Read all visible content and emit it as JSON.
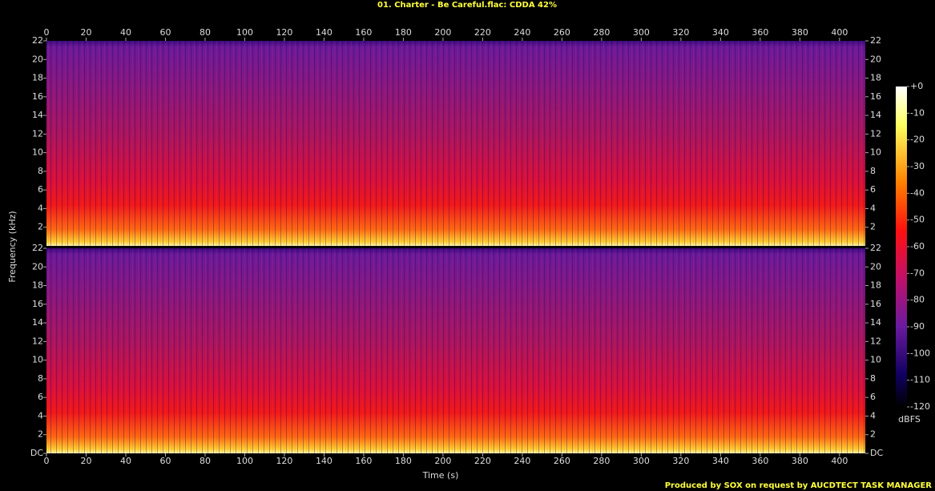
{
  "chart_data": {
    "type": "spectrogram",
    "title": "01. Charter - Be Careful.flac: CDDA 42%",
    "x_label": "Time (s)",
    "y_label": "Frequency (kHz)",
    "xlim": [
      0,
      413
    ],
    "xticks": [
      0,
      20,
      40,
      60,
      80,
      100,
      120,
      140,
      160,
      180,
      200,
      220,
      240,
      260,
      280,
      300,
      320,
      340,
      360,
      380,
      400
    ],
    "ylim": [
      0,
      22
    ],
    "yticks": [
      {
        "value": 0,
        "label": "DC"
      },
      2,
      4,
      6,
      8,
      10,
      12,
      14,
      16,
      18,
      20,
      22
    ],
    "colorbar": {
      "label": "dBFS",
      "lim": [
        -120,
        0
      ],
      "ticks": [
        {
          "value": 0,
          "label": "+0"
        },
        -10,
        -20,
        -30,
        -40,
        -50,
        -60,
        -70,
        -80,
        -90,
        -100,
        -110,
        -120
      ]
    }
  },
  "footer": "Produced by SOX on request by AUCDTECT TASK MANAGER"
}
